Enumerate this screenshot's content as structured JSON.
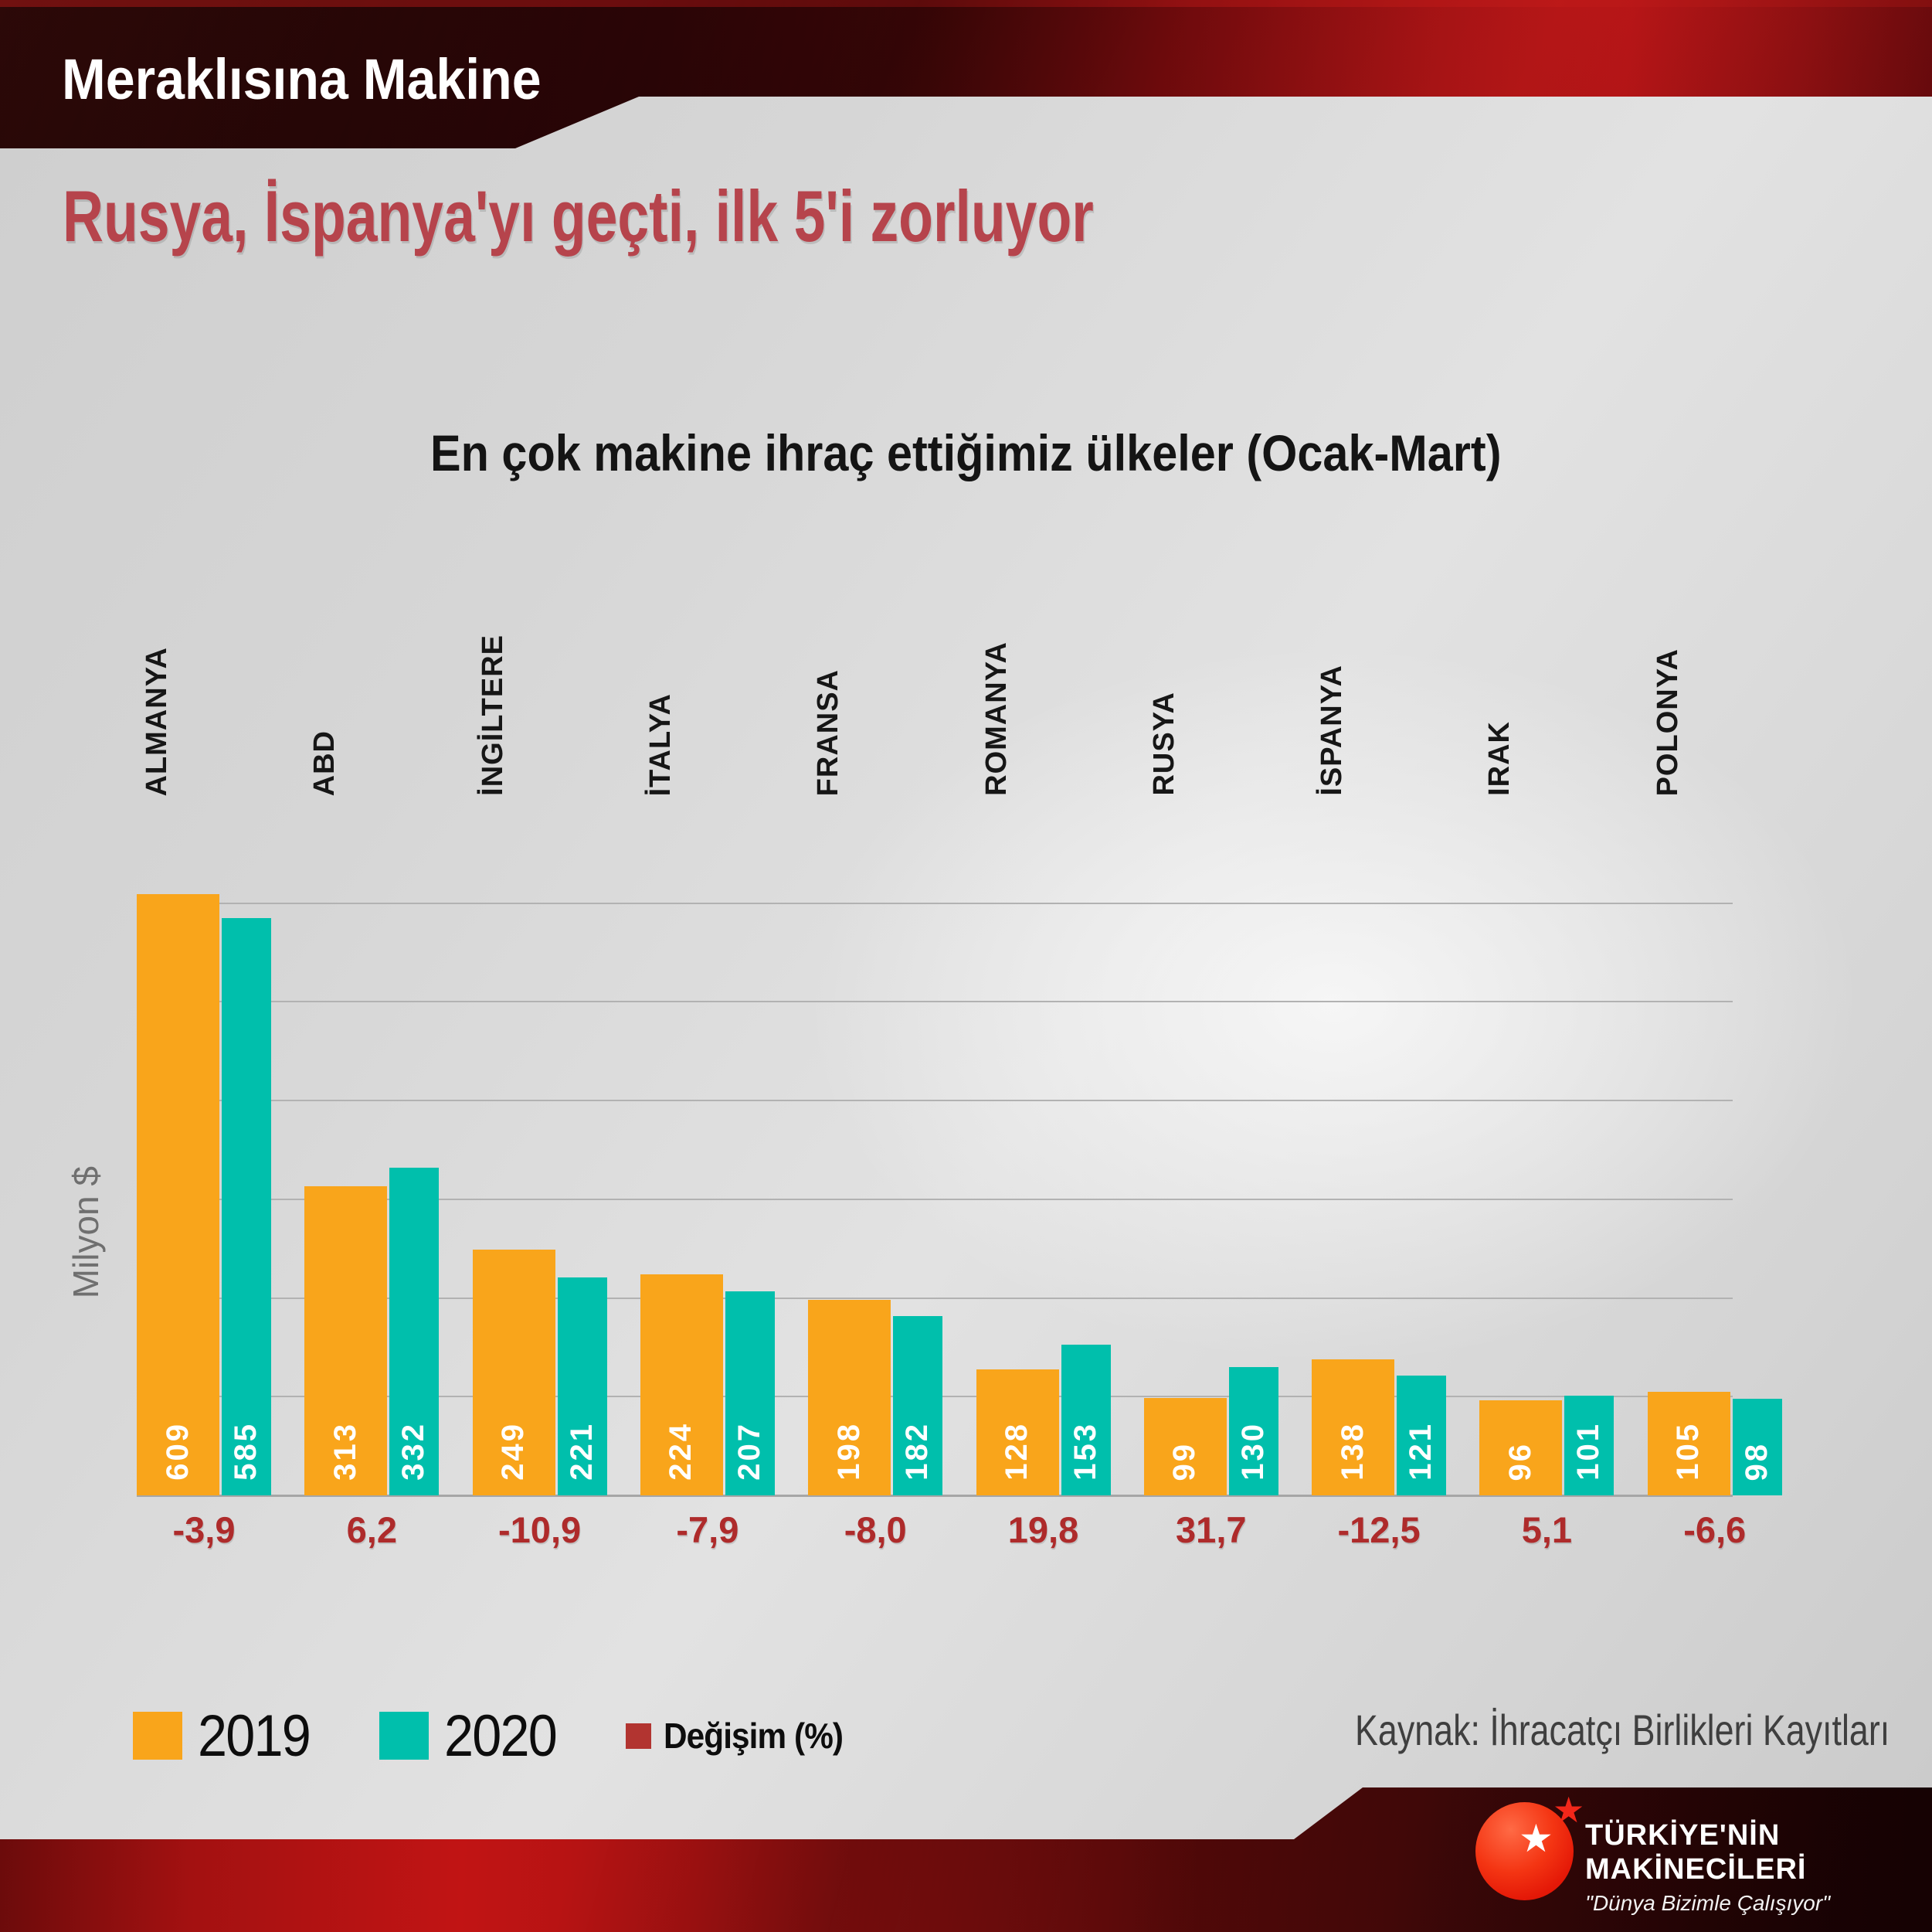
{
  "banner": {
    "brand": "Meraklısına Makine"
  },
  "headline": "Rusya, İspanya'yı geçti, ilk 5'i zorluyor",
  "chart_data": {
    "type": "bar",
    "title": "En çok makine ihraç ettiğimiz ülkeler (Ocak-Mart)",
    "ylabel": "Milyon $",
    "ylim": [
      0,
      700
    ],
    "gridlines_every": 100,
    "gridlines_max": 600,
    "grid": true,
    "legend_position": "bottom-left",
    "categories": [
      "ALMANYA",
      "ABD",
      "İNGİLTERE",
      "İTALYA",
      "FRANSA",
      "ROMANYA",
      "RUSYA",
      "İSPANYA",
      "IRAK",
      "POLONYA"
    ],
    "series": [
      {
        "name": "2019",
        "color": "#F9A51B",
        "values": [
          609,
          313,
          249,
          224,
          198,
          128,
          99,
          138,
          96,
          105
        ]
      },
      {
        "name": "2020",
        "color": "#00BFAC",
        "values": [
          585,
          332,
          221,
          207,
          182,
          153,
          130,
          121,
          101,
          98
        ]
      }
    ],
    "change_percent": {
      "name": "Değişim (%)",
      "swatch_color": "#B23430",
      "text_color": "#AE2B2B",
      "values": [
        "-3,9",
        "6,2",
        "-10,9",
        "-7,9",
        "-8,0",
        "19,8",
        "31,7",
        "-12,5",
        "5,1",
        "-6,6"
      ]
    }
  },
  "source": "Kaynak: İhracatçı Birlikleri Kayıtları",
  "logo": {
    "line1": "TÜRKİYE'NİN",
    "line2": "MAKİNECİLERİ",
    "tagline": "\"Dünya Bizimle Çalışıyor\"",
    "star": "★"
  },
  "colors": {
    "headline": "#B6444C",
    "banner_text": "#FFFFFF",
    "category_label": "#161616",
    "value_label": "#FFFFFF",
    "axis_label": "#6F6F6F",
    "source_text": "#3F3F3F"
  }
}
